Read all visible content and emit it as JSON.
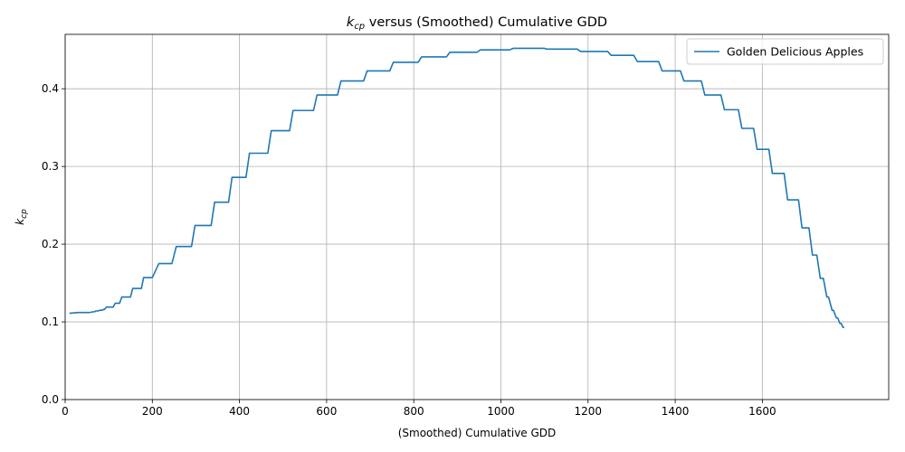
{
  "chart_data": {
    "type": "line",
    "title": "versus (Smoothed) Cumulative GDD",
    "title_math": {
      "base": "k",
      "sub": "cp"
    },
    "xlabel": "(Smoothed) Cumulative GDD",
    "ylabel_math": {
      "base": "k",
      "sub": "cp"
    },
    "xlim": [
      0,
      1890
    ],
    "ylim": [
      0,
      0.47
    ],
    "xticks": [
      0,
      200,
      400,
      600,
      800,
      1000,
      1200,
      1400,
      1600
    ],
    "yticks": [
      0.0,
      0.1,
      0.2,
      0.3,
      0.4
    ],
    "xtick_labels": [
      "0",
      "200",
      "400",
      "600",
      "800",
      "1000",
      "1200",
      "1400",
      "1600"
    ],
    "ytick_labels": [
      "0.0",
      "0.1",
      "0.2",
      "0.3",
      "0.4"
    ],
    "grid": true,
    "legend_position": "top-right",
    "series": [
      {
        "name": "Golden Delicious Apples",
        "color": "#1f77b4",
        "x": [
          10,
          30,
          55,
          65,
          68,
          70,
          75,
          80,
          85,
          88,
          90,
          95,
          100,
          110,
          115,
          125,
          130,
          135,
          150,
          155,
          175,
          180,
          200,
          215,
          245,
          255,
          290,
          298,
          335,
          343,
          375,
          383,
          415,
          423,
          465,
          473,
          515,
          523,
          570,
          578,
          625,
          633,
          685,
          693,
          745,
          753,
          810,
          818,
          875,
          883,
          945,
          953,
          1020,
          1028,
          1100,
          1105,
          1175,
          1183,
          1245,
          1253,
          1305,
          1313,
          1362,
          1370,
          1412,
          1420,
          1460,
          1468,
          1505,
          1513,
          1545,
          1553,
          1580,
          1588,
          1615,
          1623,
          1650,
          1658,
          1683,
          1691,
          1707,
          1715,
          1725,
          1733,
          1740,
          1748,
          1752,
          1760,
          1763,
          1770,
          1773,
          1778,
          1781,
          1785,
          1788
        ],
        "y": [
          0.111,
          0.112,
          0.112,
          0.113,
          0.113,
          0.114,
          0.114,
          0.115,
          0.115,
          0.116,
          0.116,
          0.119,
          0.119,
          0.119,
          0.124,
          0.124,
          0.132,
          0.132,
          0.132,
          0.143,
          0.143,
          0.157,
          0.157,
          0.175,
          0.175,
          0.197,
          0.197,
          0.224,
          0.224,
          0.254,
          0.254,
          0.286,
          0.286,
          0.317,
          0.317,
          0.346,
          0.346,
          0.372,
          0.372,
          0.392,
          0.392,
          0.41,
          0.41,
          0.423,
          0.423,
          0.434,
          0.434,
          0.441,
          0.441,
          0.447,
          0.447,
          0.45,
          0.45,
          0.452,
          0.452,
          0.451,
          0.451,
          0.448,
          0.448,
          0.443,
          0.443,
          0.435,
          0.435,
          0.423,
          0.423,
          0.41,
          0.41,
          0.392,
          0.392,
          0.373,
          0.373,
          0.349,
          0.349,
          0.322,
          0.322,
          0.291,
          0.291,
          0.257,
          0.257,
          0.221,
          0.221,
          0.186,
          0.186,
          0.156,
          0.156,
          0.132,
          0.132,
          0.115,
          0.115,
          0.105,
          0.105,
          0.098,
          0.098,
          0.093,
          0.093
        ]
      }
    ]
  }
}
